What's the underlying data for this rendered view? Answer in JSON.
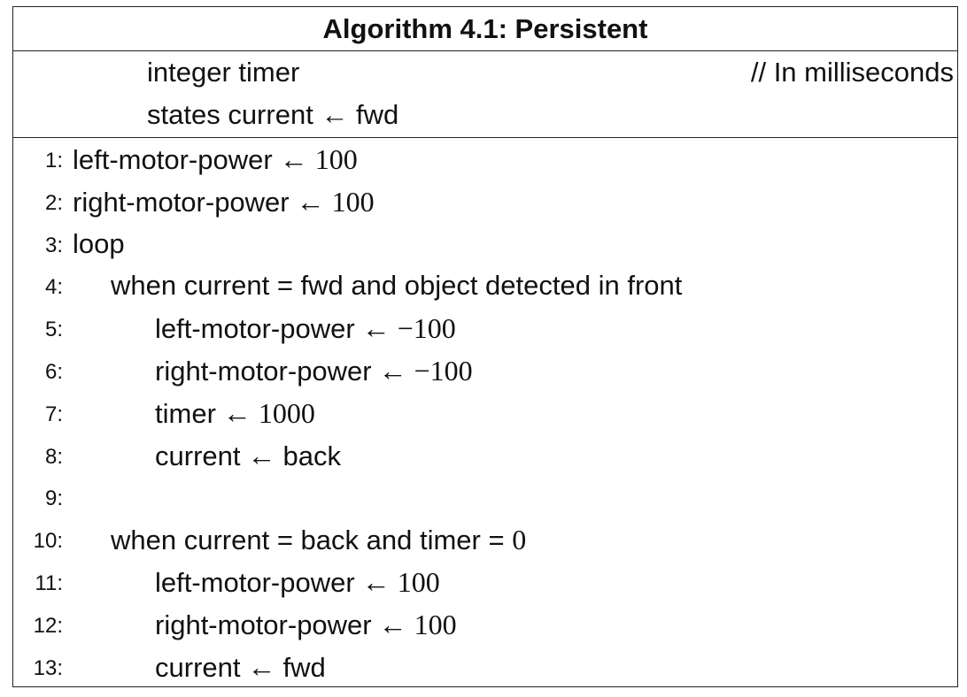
{
  "algorithm": {
    "title": "Algorithm 4.1: Persistent",
    "declarations": [
      {
        "text": "integer timer",
        "comment": "// In milliseconds"
      },
      {
        "text": "states current ← fwd",
        "comment": ""
      }
    ],
    "lines": [
      {
        "number": "1:",
        "indent": 0,
        "keyword": "left-motor-power",
        "op": " ← ",
        "value": "100"
      },
      {
        "number": "2:",
        "indent": 0,
        "keyword": "right-motor-power",
        "op": " ← ",
        "value": "100"
      },
      {
        "number": "3:",
        "indent": 0,
        "keyword": "loop",
        "op": "",
        "value": ""
      },
      {
        "number": "4:",
        "indent": 1,
        "keyword": "when current = fwd and object detected in front",
        "op": "",
        "value": ""
      },
      {
        "number": "5:",
        "indent": 2,
        "keyword": "left-motor-power",
        "op": " ← ",
        "value": "−100"
      },
      {
        "number": "6:",
        "indent": 2,
        "keyword": "right-motor-power",
        "op": " ← ",
        "value": "−100"
      },
      {
        "number": "7:",
        "indent": 2,
        "keyword": "timer",
        "op": " ← ",
        "value": "1000"
      },
      {
        "number": "8:",
        "indent": 2,
        "keyword": "current",
        "op": " ← ",
        "value": "back"
      },
      {
        "number": "9:",
        "indent": 0,
        "keyword": "",
        "op": "",
        "value": ""
      },
      {
        "number": "10:",
        "indent": 1,
        "keyword": "when current = back and timer = ",
        "op": "",
        "value": "0"
      },
      {
        "number": "11:",
        "indent": 2,
        "keyword": "left-motor-power",
        "op": " ← ",
        "value": "100"
      },
      {
        "number": "12:",
        "indent": 2,
        "keyword": "right-motor-power",
        "op": " ← ",
        "value": "100"
      },
      {
        "number": "13:",
        "indent": 2,
        "keyword": "current",
        "op": " ← ",
        "value": "fwd"
      }
    ]
  }
}
